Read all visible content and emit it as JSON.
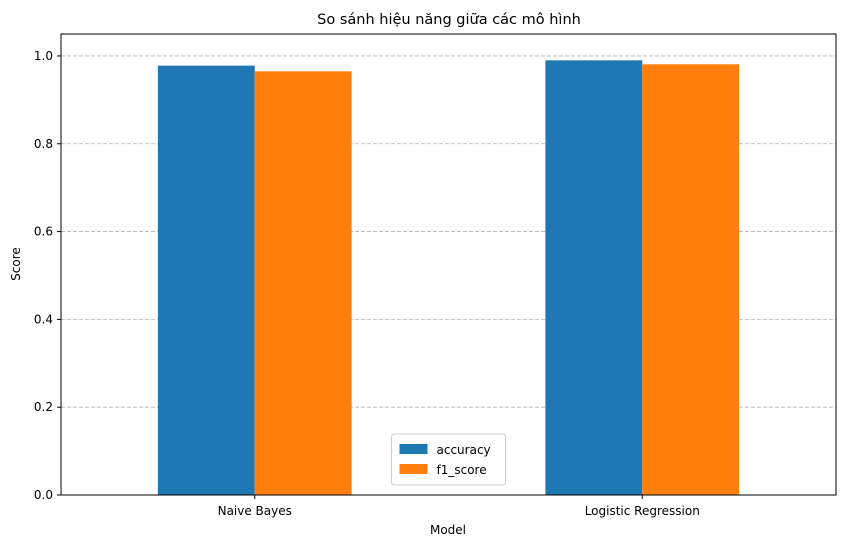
{
  "chart_data": {
    "type": "bar",
    "title": "So sánh hiệu năng giữa các mô hình",
    "xlabel": "Model",
    "ylabel": "Score",
    "categories": [
      "Naive Bayes",
      "Logistic Regression"
    ],
    "series": [
      {
        "name": "accuracy",
        "values": [
          0.978,
          0.99
        ],
        "color": "#1f77b4"
      },
      {
        "name": "f1_score",
        "values": [
          0.965,
          0.981
        ],
        "color": "#ff7f0e"
      }
    ],
    "ylim": [
      0,
      1.05
    ],
    "yticks": [
      "0.0",
      "0.2",
      "0.4",
      "0.6",
      "0.8",
      "1.0"
    ],
    "grid": "y-dashed",
    "legend_position": "bottom-center"
  }
}
